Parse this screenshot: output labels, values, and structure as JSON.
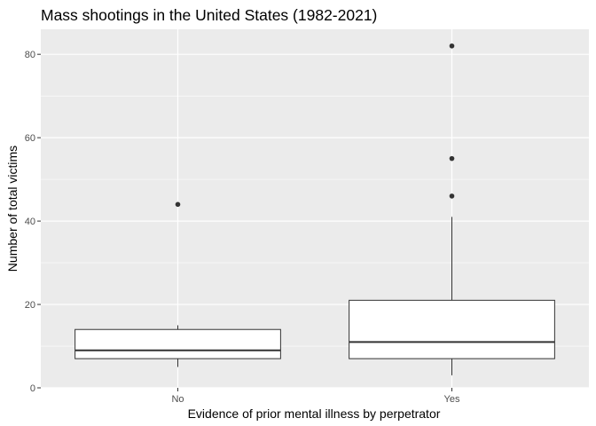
{
  "chart_data": {
    "type": "boxplot",
    "title": "Mass shootings in the United States (1982-2021)",
    "xlabel": "Evidence of prior mental illness by perpetrator",
    "ylabel": "Number of total victims",
    "ylim": [
      0,
      86
    ],
    "yticks": [
      0,
      20,
      40,
      60,
      80
    ],
    "grid": true,
    "legend": "none",
    "categories": [
      "No",
      "Yes"
    ],
    "boxes": [
      {
        "category": "No",
        "lower_whisker": 5,
        "q1": 7,
        "median": 9,
        "q3": 14,
        "upper_whisker": 15,
        "outliers": [
          44
        ]
      },
      {
        "category": "Yes",
        "lower_whisker": 3,
        "q1": 7,
        "median": 11,
        "q3": 21,
        "upper_whisker": 41,
        "outliers": [
          46,
          55,
          82
        ]
      }
    ],
    "colors": {
      "panel_background": "#ebebeb",
      "grid": "#ffffff",
      "box_fill": "#ffffff",
      "box_line": "#333333",
      "tick_label": "#4d4d4d"
    }
  }
}
